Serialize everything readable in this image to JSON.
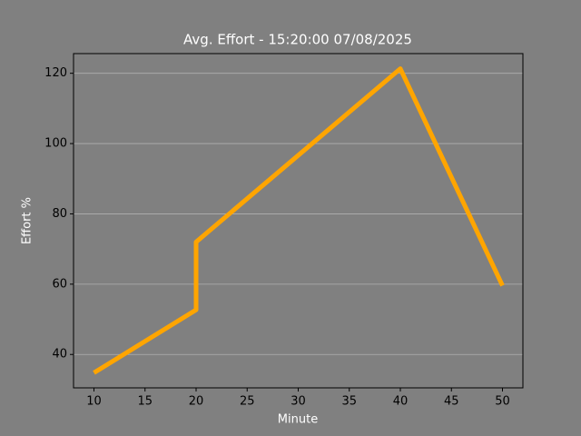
{
  "chart_data": {
    "type": "line",
    "title": "Avg. Effort - 15:20:00 07/08/2025",
    "x_label": "Minute",
    "y_label": "Effort %",
    "x": [
      10,
      20,
      20,
      40,
      50
    ],
    "series": [
      {
        "name": "Effort",
        "color": "#ffa500",
        "values": [
          34.8,
          52.7,
          72,
          121.3,
          59.6
        ]
      }
    ],
    "xlim": [
      8,
      52
    ],
    "xticks": [
      10,
      15,
      20,
      25,
      30,
      35,
      40,
      45,
      50
    ],
    "ylim": [
      30.5,
      125.6
    ],
    "yticks": [
      40,
      60,
      80,
      100,
      120
    ],
    "grid": "y",
    "background": "#808080"
  }
}
